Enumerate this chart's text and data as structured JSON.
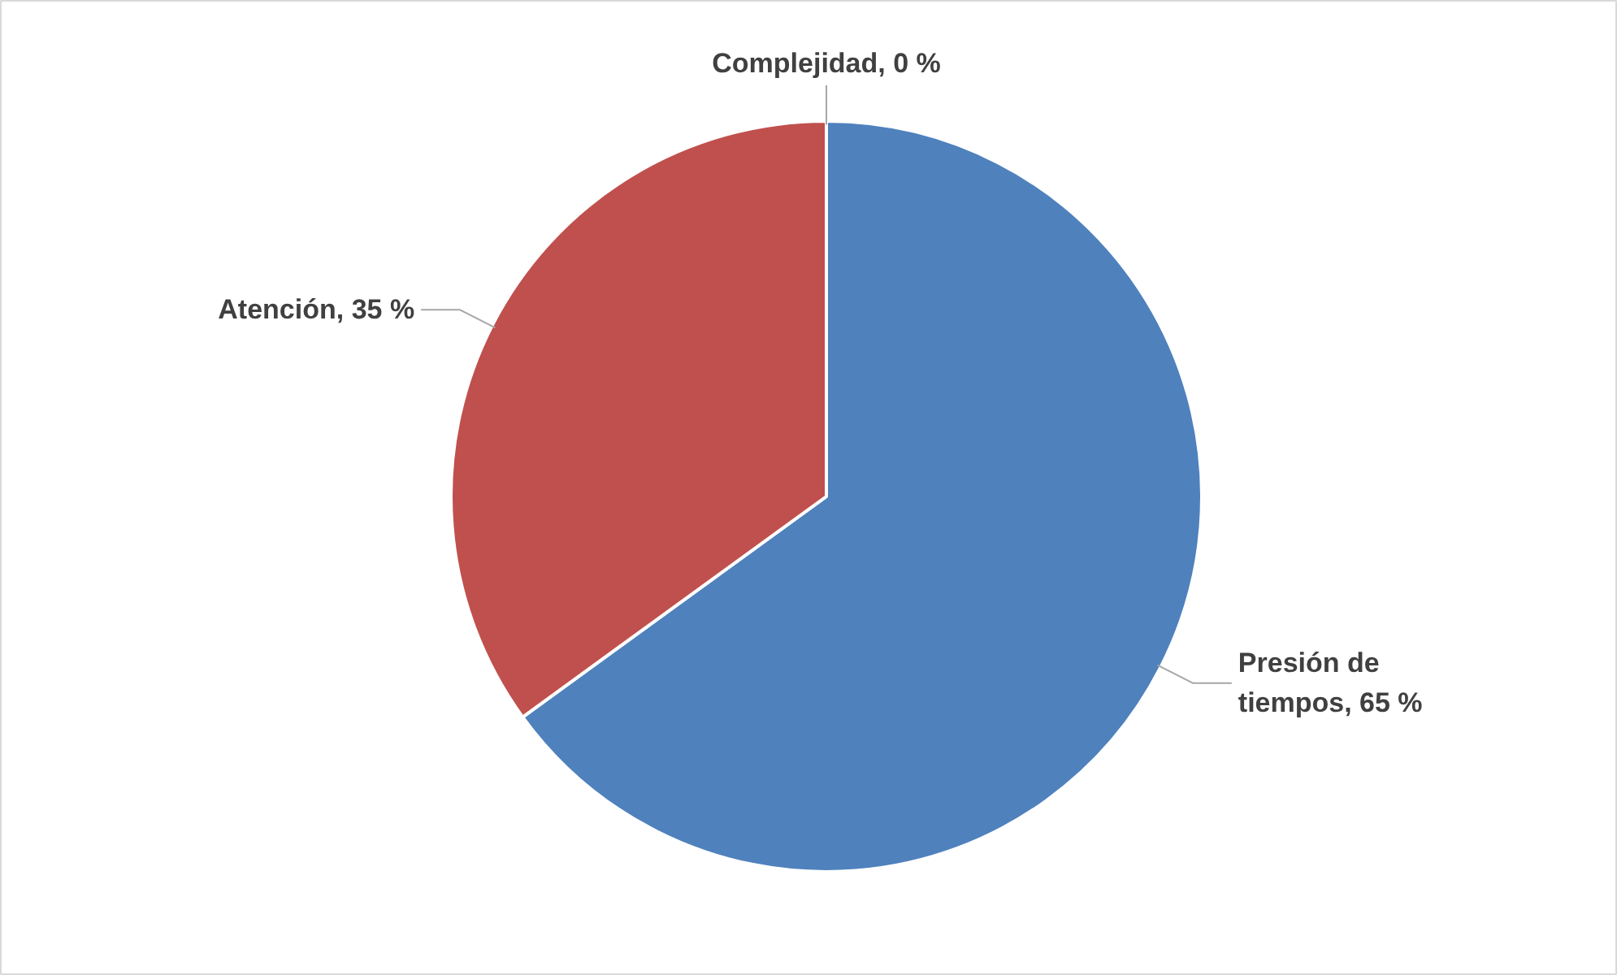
{
  "chart_data": {
    "type": "pie",
    "categories": [
      "Presión de tiempos",
      "Atención",
      "Complejidad"
    ],
    "values": [
      65,
      35,
      0
    ],
    "colors": [
      "#4f81bd",
      "#c0504d",
      "#9bbb59"
    ],
    "value_labels": [
      ", 65 %",
      ", 35 %",
      ", 0 %"
    ]
  }
}
